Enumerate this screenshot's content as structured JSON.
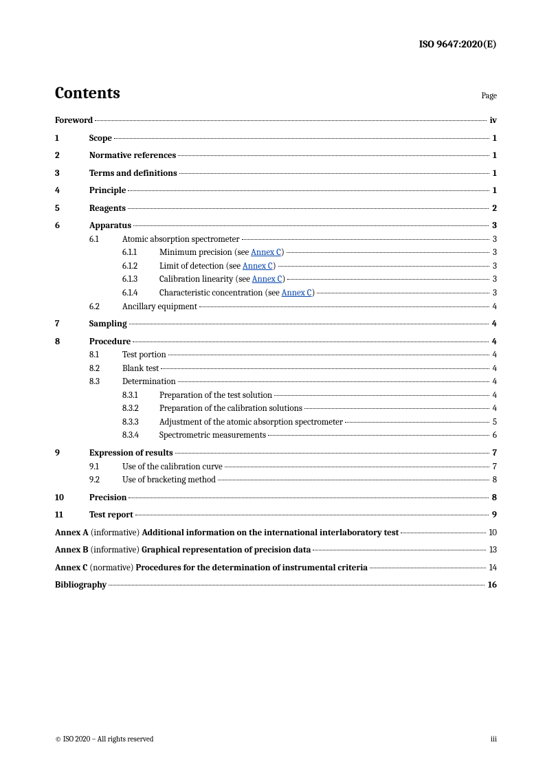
{
  "header": "ISO 9647:2020(E)",
  "contents_title": "Contents",
  "page_label": "Page",
  "annex_link_text": "Annex C",
  "toc": [
    {
      "level": 0,
      "bold": true,
      "num": "",
      "text": "Foreword",
      "page": "iv",
      "block": true
    },
    {
      "level": 0,
      "bold": true,
      "num": "1",
      "text": "Scope",
      "page": "1",
      "block": true
    },
    {
      "level": 0,
      "bold": true,
      "num": "2",
      "text": "Normative references",
      "page": "1",
      "block": true
    },
    {
      "level": 0,
      "bold": true,
      "num": "3",
      "text": "Terms and definitions",
      "page": "1",
      "block": true
    },
    {
      "level": 0,
      "bold": true,
      "num": "4",
      "text": "Principle",
      "page": "1",
      "block": true
    },
    {
      "level": 0,
      "bold": true,
      "num": "5",
      "text": "Reagents",
      "page": "2",
      "block": true
    },
    {
      "level": 0,
      "bold": true,
      "num": "6",
      "text": "Apparatus",
      "page": "3"
    },
    {
      "level": 1,
      "num": "6.1",
      "text": "Atomic absorption spectrometer",
      "page": "3"
    },
    {
      "level": 2,
      "num": "6.1.1",
      "text": "Minimum precision (see ",
      "link": true,
      "after": ")",
      "page": "3"
    },
    {
      "level": 2,
      "num": "6.1.2",
      "text": "Limit of detection (see ",
      "link": true,
      "after": ")",
      "page": "3"
    },
    {
      "level": 2,
      "num": "6.1.3",
      "text": "Calibration linearity (see ",
      "link": true,
      "after": ")",
      "page": "3"
    },
    {
      "level": 2,
      "num": "6.1.4",
      "text": "Characteristic concentration (see ",
      "link": true,
      "after": ")",
      "page": "3"
    },
    {
      "level": 1,
      "num": "6.2",
      "text": "Ancillary equipment",
      "page": "4",
      "block": true
    },
    {
      "level": 0,
      "bold": true,
      "num": "7",
      "text": "Sampling",
      "page": "4",
      "block": true
    },
    {
      "level": 0,
      "bold": true,
      "num": "8",
      "text": "Procedure",
      "page": "4"
    },
    {
      "level": 1,
      "num": "8.1",
      "text": "Test portion",
      "page": "4"
    },
    {
      "level": 1,
      "num": "8.2",
      "text": "Blank test",
      "page": "4"
    },
    {
      "level": 1,
      "num": "8.3",
      "text": "Determination",
      "page": "4"
    },
    {
      "level": 2,
      "num": "8.3.1",
      "text": "Preparation of the test solution",
      "page": "4"
    },
    {
      "level": 2,
      "num": "8.3.2",
      "text": "Preparation of the calibration solutions",
      "page": "4"
    },
    {
      "level": 2,
      "num": "8.3.3",
      "text": "Adjustment of the atomic absorption spectrometer",
      "page": "5"
    },
    {
      "level": 2,
      "num": "8.3.4",
      "text": "Spectrometric measurements",
      "page": "6",
      "block": true
    },
    {
      "level": 0,
      "bold": true,
      "num": "9",
      "text": "Expression of results",
      "page": "7"
    },
    {
      "level": 1,
      "num": "9.1",
      "text": "Use of the calibration curve",
      "page": "7"
    },
    {
      "level": 1,
      "num": "9.2",
      "text": "Use of bracketing method",
      "page": "8",
      "block": true
    },
    {
      "level": 0,
      "bold": true,
      "num": "10",
      "text": "Precision",
      "page": "8",
      "block": true
    },
    {
      "level": 0,
      "bold": true,
      "num": "11",
      "text": "Test report",
      "page": "9",
      "block": true
    },
    {
      "annex": true,
      "lead": "Annex A",
      "note": " (informative) ",
      "title": "Additional information on the international interlaboratory test",
      "page": "10",
      "block": true
    },
    {
      "annex": true,
      "lead": "Annex B",
      "note": " (informative) ",
      "title": "Graphical representation of precision data",
      "page": "13",
      "block": true
    },
    {
      "annex": true,
      "lead": "Annex C",
      "note": " (normative) ",
      "title": "Procedures for the determination of instrumental criteria",
      "page": "14",
      "block": true
    },
    {
      "level": 0,
      "bold": true,
      "num": "",
      "text": "Bibliography",
      "page": "16",
      "block": true
    }
  ],
  "footer_left": "© ISO 2020 – All rights reserved",
  "footer_right": "iii"
}
